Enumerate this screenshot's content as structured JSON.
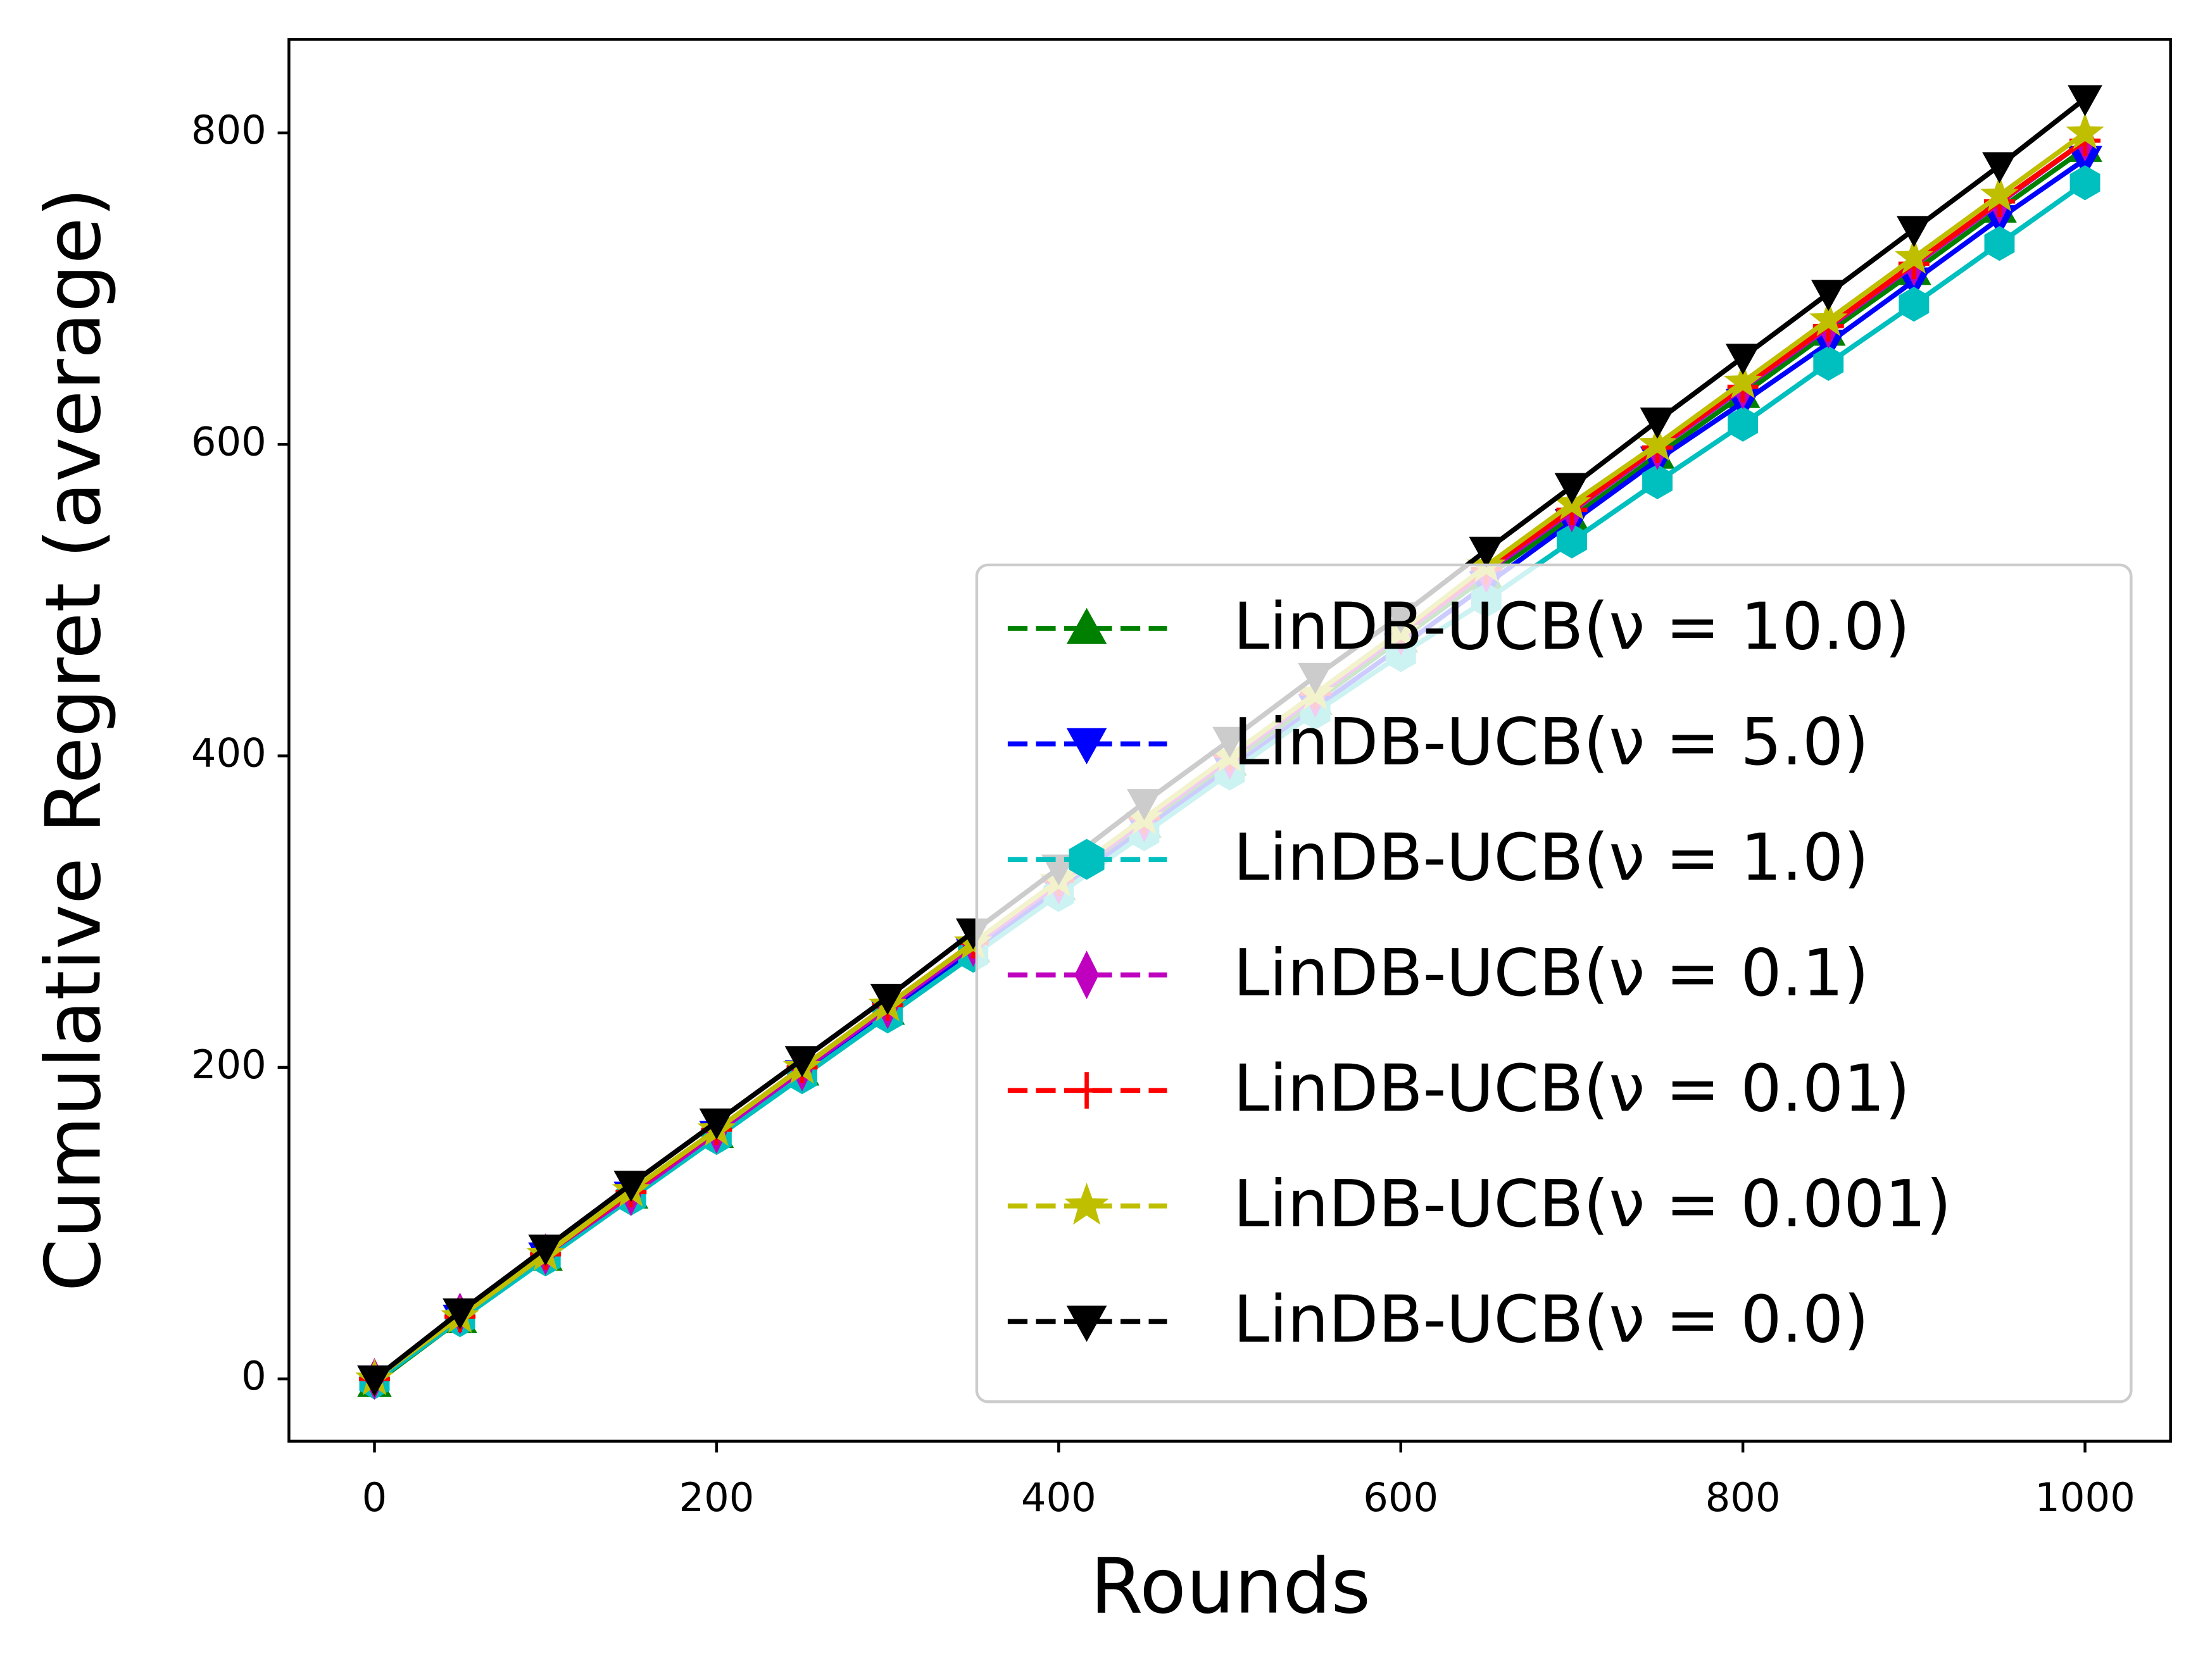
{
  "chart_data": {
    "type": "line",
    "x_label": "Rounds",
    "y_label": "Cumulative Regret (average)",
    "x": [
      0,
      50,
      100,
      150,
      200,
      250,
      300,
      350,
      400,
      450,
      500,
      550,
      600,
      650,
      700,
      750,
      800,
      850,
      900,
      950,
      1000
    ],
    "xlim": [
      -50,
      1050
    ],
    "ylim": [
      -40,
      860
    ],
    "xticks": [
      0,
      200,
      400,
      600,
      800,
      1000
    ],
    "yticks": [
      0,
      200,
      400,
      600,
      800
    ],
    "legend": "lower right",
    "series": [
      {
        "name": "LinDB-UCB(ν = 10.0)",
        "color": "#008000",
        "marker": "triangle-up",
        "values": [
          -3,
          38,
          78,
          118,
          157,
          197,
          236,
          276,
          316,
          356,
          396,
          435,
          475,
          515,
          553,
          593,
          632,
          672,
          711,
          751,
          790
        ]
      },
      {
        "name": "LinDB-UCB(ν = 5.0)",
        "color": "#0000ff",
        "marker": "triangle-down",
        "values": [
          0,
          39,
          79,
          118,
          157,
          196,
          235,
          274,
          314,
          353,
          392,
          431,
          470,
          510,
          550,
          590,
          627,
          665,
          705,
          745,
          783
        ]
      },
      {
        "name": "LinDB-UCB(ν = 1.0)",
        "color": "#00bfbf",
        "marker": "hexagon",
        "values": [
          -2,
          38,
          77,
          116,
          155,
          194,
          233,
          272,
          311,
          350,
          389,
          428,
          465,
          500,
          538,
          576,
          613,
          652,
          690,
          729,
          768
        ]
      },
      {
        "name": "LinDB-UCB(ν = 0.1)",
        "color": "#bf00bf",
        "marker": "thin-diamond",
        "values": [
          0,
          42,
          80,
          118,
          158,
          198,
          238,
          278,
          318,
          358,
          398,
          438,
          478,
          518,
          557,
          597,
          636,
          675,
          715,
          755,
          795
        ]
      },
      {
        "name": "LinDB-UCB(ν = 0.01)",
        "color": "#ff0000",
        "marker": "plus",
        "values": [
          0,
          40,
          80,
          120,
          160,
          200,
          240,
          280,
          320,
          360,
          400,
          440,
          480,
          520,
          558,
          598,
          637,
          676,
          716,
          756,
          795
        ]
      },
      {
        "name": "LinDB-UCB(ν = 0.001)",
        "color": "#bfbf00",
        "marker": "star",
        "values": [
          0,
          40,
          80,
          121,
          160,
          200,
          240,
          280,
          320,
          360,
          400,
          440,
          480,
          522,
          562,
          600,
          640,
          680,
          720,
          760,
          800
        ]
      },
      {
        "name": "LinDB-UCB(ν = 0.0)",
        "color": "#000000",
        "marker": "triangle-down",
        "values": [
          0,
          43,
          84,
          125,
          165,
          205,
          245,
          287,
          328,
          370,
          410,
          451,
          490,
          532,
          573,
          615,
          656,
          697,
          738,
          779,
          822
        ]
      }
    ]
  }
}
